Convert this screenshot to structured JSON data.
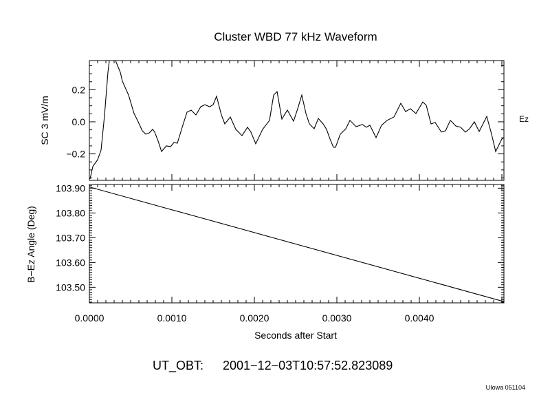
{
  "chart_data": [
    {
      "type": "line",
      "title": "Cluster WBD 77 kHz Waveform",
      "ylabel": "SC 3 mV/m",
      "right_label": "Ez",
      "xlim": [
        0,
        0.005025
      ],
      "ylim": [
        -0.365,
        0.382
      ],
      "yticks": [
        -0.2,
        0.0,
        0.2
      ],
      "ytick_labels": [
        "−0.2",
        "0.0",
        "0.2"
      ],
      "grid": false,
      "color": "#000000",
      "x": [
        8e-06,
        4.2e-05,
        0.0001,
        0.000142,
        0.000183,
        0.000225,
        0.00025,
        0.000275,
        0.000317,
        0.000375,
        0.0004,
        0.000475,
        0.000542,
        0.000583,
        0.000642,
        0.000683,
        0.000725,
        0.000767,
        0.000792,
        0.000833,
        0.000875,
        0.000933,
        0.000983,
        0.001025,
        0.001067,
        0.001125,
        0.001183,
        0.001233,
        0.001292,
        0.00135,
        0.0014,
        0.001458,
        0.0015,
        0.001542,
        0.0016,
        0.001642,
        0.001708,
        0.001775,
        0.00185,
        0.001917,
        0.001958,
        0.002017,
        0.0021,
        0.002183,
        0.002233,
        0.002275,
        0.002333,
        0.0024,
        0.002475,
        0.002525,
        0.002575,
        0.002625,
        0.002667,
        0.002725,
        0.002775,
        0.002833,
        0.002875,
        0.002917,
        0.002958,
        0.002983,
        0.003042,
        0.003108,
        0.003158,
        0.003233,
        0.003308,
        0.003358,
        0.0034,
        0.003475,
        0.003542,
        0.003608,
        0.003692,
        0.003775,
        0.003833,
        0.003892,
        0.003958,
        0.004042,
        0.004083,
        0.004142,
        0.004192,
        0.004267,
        0.004317,
        0.004375,
        0.004442,
        0.0045,
        0.004558,
        0.004608,
        0.004667,
        0.004725,
        0.004817,
        0.004875,
        0.004925,
        0.005,
        0.005025
      ],
      "y": [
        -0.356,
        -0.279,
        -0.236,
        -0.176,
        0.039,
        0.309,
        0.416,
        0.42,
        0.382,
        0.309,
        0.253,
        0.167,
        0.052,
        0.009,
        -0.056,
        -0.077,
        -0.069,
        -0.047,
        -0.064,
        -0.12,
        -0.185,
        -0.15,
        -0.155,
        -0.129,
        -0.133,
        -0.034,
        0.06,
        0.073,
        0.043,
        0.094,
        0.107,
        0.094,
        0.107,
        0.159,
        0.043,
        -0.013,
        0.03,
        -0.047,
        -0.086,
        -0.034,
        -0.064,
        -0.137,
        -0.047,
        0.009,
        0.167,
        0.189,
        0.017,
        0.073,
        0.004,
        0.082,
        0.167,
        0.052,
        -0.013,
        -0.043,
        0.021,
        -0.013,
        -0.047,
        -0.107,
        -0.159,
        -0.159,
        -0.077,
        -0.043,
        0.009,
        -0.03,
        -0.017,
        -0.034,
        -0.021,
        -0.099,
        -0.021,
        0.009,
        0.03,
        0.116,
        0.064,
        0.082,
        0.052,
        0.124,
        0.103,
        -0.013,
        -0.004,
        -0.064,
        -0.056,
        0.009,
        -0.026,
        -0.034,
        -0.064,
        -0.043,
        0.0,
        -0.06,
        0.034,
        -0.077,
        -0.185,
        -0.107,
        -0.099
      ]
    },
    {
      "type": "line",
      "ylabel": "B−Ez Angle (Deg)",
      "xlabel": "Seconds after Start",
      "xlim": [
        0,
        0.005025
      ],
      "ylim": [
        103.437,
        103.915
      ],
      "yticks": [
        103.5,
        103.6,
        103.7,
        103.8,
        103.9
      ],
      "ytick_labels": [
        "103.50",
        "103.60",
        "103.70",
        "103.80",
        "103.90"
      ],
      "xticks": [
        0,
        0.001,
        0.002,
        0.003,
        0.004
      ],
      "xtick_labels": [
        "0.0000",
        "0.0010",
        "0.0020",
        "0.0030",
        "0.0040"
      ],
      "grid": false,
      "color": "#000000",
      "x": [
        0,
        0.005025
      ],
      "y": [
        103.905,
        103.442
      ]
    }
  ],
  "footer": {
    "ut_label": "UT_OBT:",
    "ut_value": "2001−12−03T10:57:52.823089",
    "credit": "UIowa 051104"
  }
}
